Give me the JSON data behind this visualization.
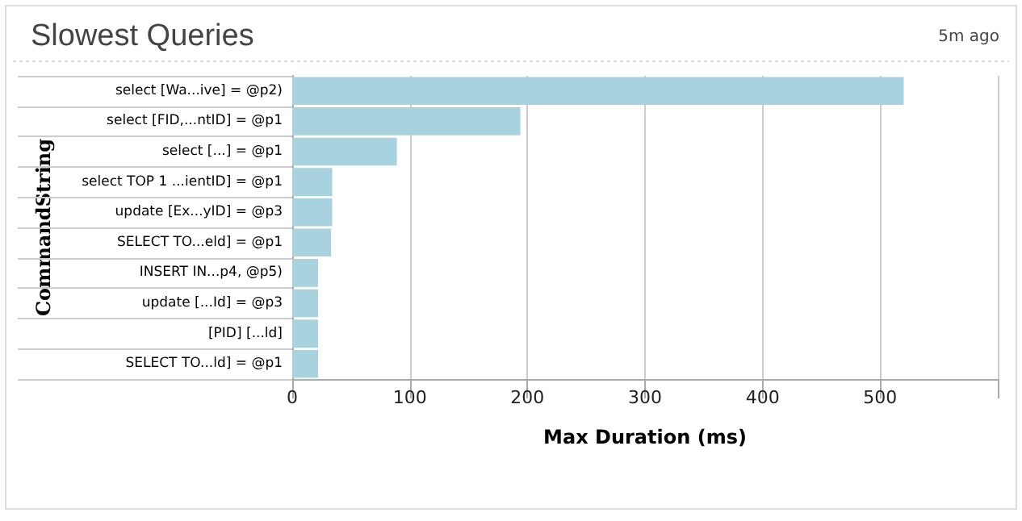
{
  "chart_data": {
    "type": "bar",
    "orientation": "horizontal",
    "title": "Slowest Queries",
    "annotations": [
      "5m ago"
    ],
    "xlabel": "Max Duration (ms)",
    "ylabel": "CommandString",
    "categories": [
      "select [Wa...ive] = @p2)",
      "select [FID,...ntID] = @p1",
      "select [...] = @p1",
      "select TOP 1 ...ientID] = @p1",
      "update [Ex...yID] = @p3",
      "SELECT TO...eld] = @p1",
      "INSERT IN...p4, @p5)",
      "update [...Id] = @p3",
      "[PID] [...ld]",
      "SELECT TO...ld] = @p1"
    ],
    "values": [
      520,
      194,
      89,
      34,
      34,
      33,
      22,
      22,
      22,
      22
    ],
    "color": "#a8d3de",
    "xlim": [
      0,
      600
    ],
    "xticks": [
      0,
      100,
      200,
      300,
      400,
      500,
      {
        "value": 600,
        "label": null
      }
    ],
    "grid": "x"
  }
}
